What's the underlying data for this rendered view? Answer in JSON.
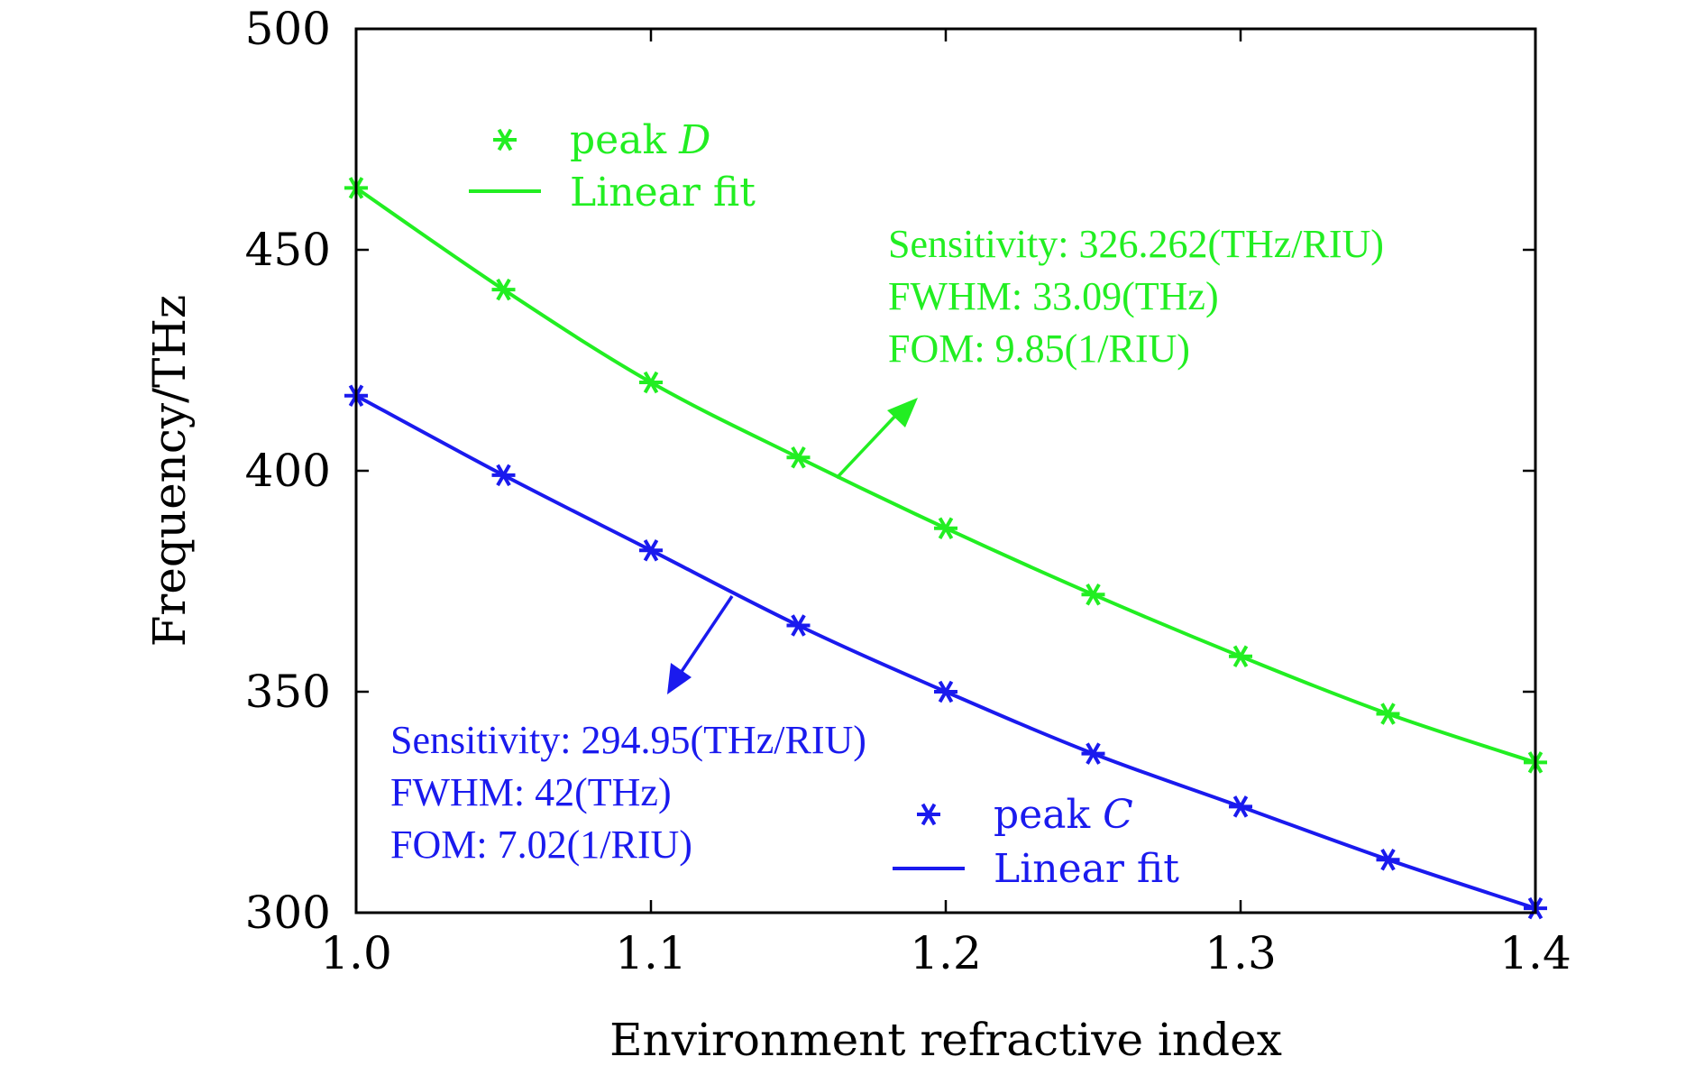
{
  "chart_data": {
    "type": "line",
    "title": "",
    "xlabel": "Environment refractive index",
    "ylabel": "Frequency/THz",
    "xlim": [
      1.0,
      1.4
    ],
    "ylim": [
      300,
      500
    ],
    "xticks": [
      1.0,
      1.1,
      1.2,
      1.3,
      1.4
    ],
    "xtick_labels": [
      "1.0",
      "1.1",
      "1.2",
      "1.3",
      "1.4"
    ],
    "yticks": [
      300,
      350,
      400,
      450,
      500
    ],
    "ytick_labels": [
      "300",
      "350",
      "400",
      "450",
      "500"
    ],
    "grid": false,
    "x": [
      1.0,
      1.05,
      1.1,
      1.15,
      1.2,
      1.25,
      1.3,
      1.35,
      1.4
    ],
    "series": [
      {
        "name": "peak D",
        "color": "#22ee22",
        "marker": "asterisk",
        "values": [
          464,
          441,
          420,
          403,
          387,
          372,
          358,
          345,
          334
        ],
        "fit_label": "Linear fit",
        "annotation": [
          "Sensitivity: 326.262(THz/RIU)",
          "FWHM: 33.09(THz)",
          "FOM: 9.85(1/RIU)"
        ]
      },
      {
        "name": "peak C",
        "color": "#1a1aee",
        "marker": "asterisk",
        "values": [
          417,
          399,
          382,
          365,
          350,
          336,
          324,
          312,
          301
        ],
        "fit_label": "Linear fit",
        "annotation": [
          "Sensitivity: 294.95(THz/RIU)",
          "FWHM: 42(THz)",
          "FOM: 7.02(1/RIU)"
        ]
      }
    ],
    "legend": [
      {
        "series": 0,
        "marker_label_prefix": "peak ",
        "marker_label_var": "D",
        "line_label": "Linear fit",
        "placement": "upper-left"
      },
      {
        "series": 1,
        "marker_label_prefix": "peak ",
        "marker_label_var": "C",
        "line_label": "Linear fit",
        "placement": "lower-right"
      }
    ]
  }
}
